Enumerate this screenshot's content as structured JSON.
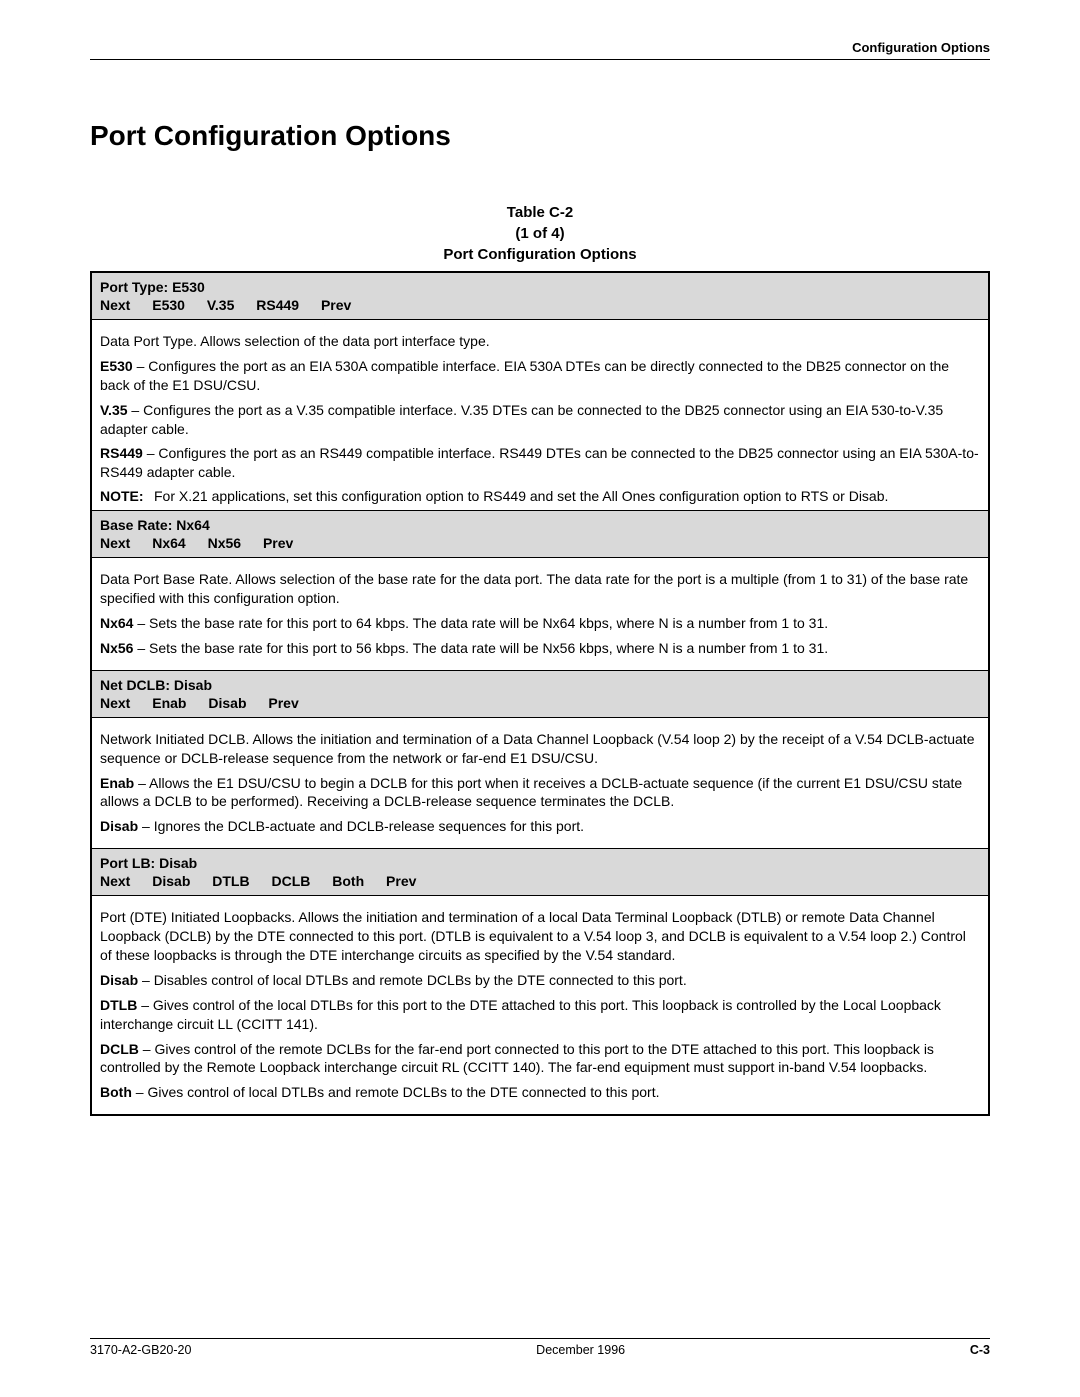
{
  "header": {
    "right": "Configuration Options"
  },
  "page_title": "Port Configuration Options",
  "table_caption": {
    "line1": "Table C-2",
    "line2": "(1 of 4)",
    "line3": "Port Configuration Options"
  },
  "sections": [
    {
      "header_title": "Port Type: E530",
      "header_opts": [
        "Next",
        "E530",
        "V.35",
        "RS449",
        "Prev"
      ],
      "paras": [
        {
          "bold": "",
          "text": "Data Port Type. Allows selection of the data port interface type."
        },
        {
          "bold": "E530",
          "text": " – Configures the port as an EIA 530A compatible interface. EIA 530A DTEs can be directly connected to the DB25 connector on the back of the E1 DSU/CSU."
        },
        {
          "bold": "V.35",
          "text": " – Configures the port as a V.35 compatible interface. V.35 DTEs can be connected to the DB25 connector using an EIA 530-to-V.35 adapter cable."
        },
        {
          "bold": "RS449",
          "text": " – Configures the port as an RS449 compatible interface. RS449 DTEs can be connected to the DB25 connector using an EIA 530A-to-RS449 adapter cable."
        }
      ],
      "note": {
        "label": "NOTE:",
        "text": "For X.21 applications, set this configuration option to RS449 and set the All Ones configuration option to RTS or Disab."
      }
    },
    {
      "header_title": "Base Rate: Nx64",
      "header_opts": [
        "Next",
        "Nx64",
        "Nx56",
        "Prev"
      ],
      "paras": [
        {
          "bold": "",
          "text": "Data Port Base Rate. Allows selection of the base rate for the data port. The data rate for the port is a multiple (from 1 to 31) of the base rate specified with this configuration option."
        },
        {
          "bold": "Nx64",
          "text": " – Sets the base rate for this port to 64 kbps. The data rate will be Nx64 kbps, where N is a number from 1 to 31."
        },
        {
          "bold": "Nx56",
          "text": " – Sets the base rate for this port to 56 kbps. The data rate will be Nx56 kbps, where N is a number from 1 to 31."
        }
      ]
    },
    {
      "header_title": "Net DCLB: Disab",
      "header_opts": [
        "Next",
        "Enab",
        "Disab",
        "Prev"
      ],
      "paras": [
        {
          "bold": "",
          "text": "Network Initiated DCLB. Allows the initiation and termination of a Data Channel Loopback (V.54 loop 2) by the receipt of a V.54 DCLB-actuate sequence or DCLB-release sequence from the network or far-end E1 DSU/CSU."
        },
        {
          "bold": "Enab",
          "text": " – Allows the E1 DSU/CSU to begin a DCLB for this port when it receives a DCLB-actuate sequence (if the current E1 DSU/CSU state allows a DCLB to be performed). Receiving a DCLB-release sequence terminates the DCLB."
        },
        {
          "bold": "Disab",
          "text": " – Ignores the DCLB-actuate and DCLB-release sequences for this port."
        }
      ]
    },
    {
      "header_title": "Port LB: Disab",
      "header_opts": [
        "Next",
        "Disab",
        "DTLB",
        "DCLB",
        "Both",
        "Prev"
      ],
      "paras": [
        {
          "bold": "",
          "text": "Port (DTE) Initiated Loopbacks. Allows the initiation and termination of a local Data Terminal Loopback (DTLB) or remote Data Channel Loopback (DCLB) by the DTE connected to this port. (DTLB is equivalent to a V.54 loop 3, and DCLB is equivalent to a V.54 loop 2.) Control of these loopbacks is through the DTE interchange circuits as specified by the V.54 standard."
        },
        {
          "bold": "Disab",
          "text": " – Disables control of local DTLBs and remote DCLBs by the DTE connected to this port."
        },
        {
          "bold": "DTLB",
          "text": " – Gives control of the local DTLBs for this port to the DTE attached to this port. This loopback is controlled by the Local Loopback interchange circuit LL (CCITT 141)."
        },
        {
          "bold": "DCLB",
          "text": " – Gives control of the remote DCLBs for the far-end port connected to this port to the DTE attached to this port. This loopback is controlled by the Remote Loopback interchange circuit RL (CCITT 140). The far-end equipment must support in-band V.54 loopbacks."
        },
        {
          "bold": "Both",
          "text": " – Gives control of local DTLBs and remote DCLBs to the DTE connected to this port."
        }
      ]
    }
  ],
  "footer": {
    "left": "3170-A2-GB20-20",
    "center": "December 1996",
    "right": "C-3"
  }
}
